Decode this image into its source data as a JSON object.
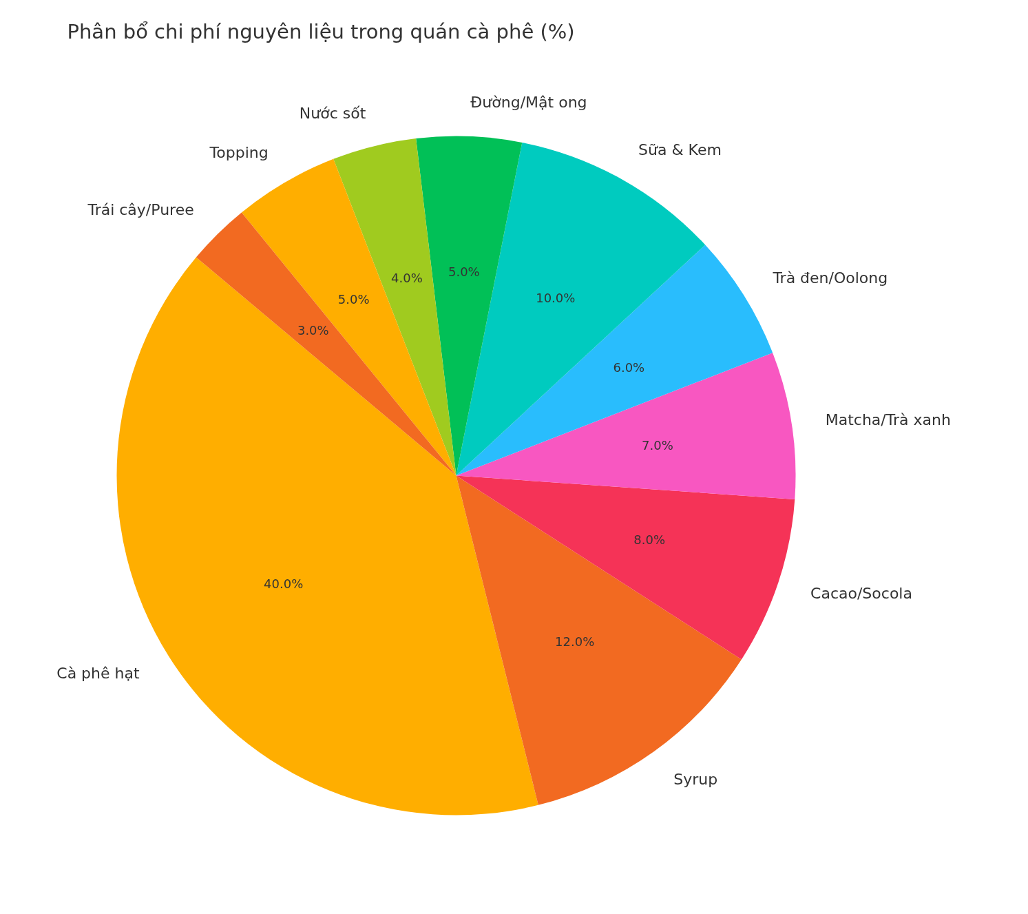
{
  "chart_data": {
    "type": "pie",
    "title": "Phân bổ chi phí nguyên liệu trong quán cà phê (%)",
    "categories": [
      "Cà phê hạt",
      "Syrup",
      "Cacao/Socola",
      "Matcha/Trà xanh",
      "Trà đen/Oolong",
      "Sữa & Kem",
      "Đường/Mật ong",
      "Nước sốt",
      "Topping",
      "Trái cây/Puree"
    ],
    "values": [
      40,
      12,
      8,
      7,
      6,
      10,
      5,
      4,
      5,
      3
    ],
    "value_labels": [
      "40.0%",
      "12.0%",
      "8.0%",
      "7.0%",
      "6.0%",
      "10.0%",
      "5.0%",
      "4.0%",
      "5.0%",
      "3.0%"
    ],
    "colors": [
      "#ffae00",
      "#f26a21",
      "#f53357",
      "#f857c1",
      "#29bdfd",
      "#00cbbf",
      "#01c057",
      "#a0cb1f",
      "#ffae00",
      "#f26a21"
    ]
  }
}
